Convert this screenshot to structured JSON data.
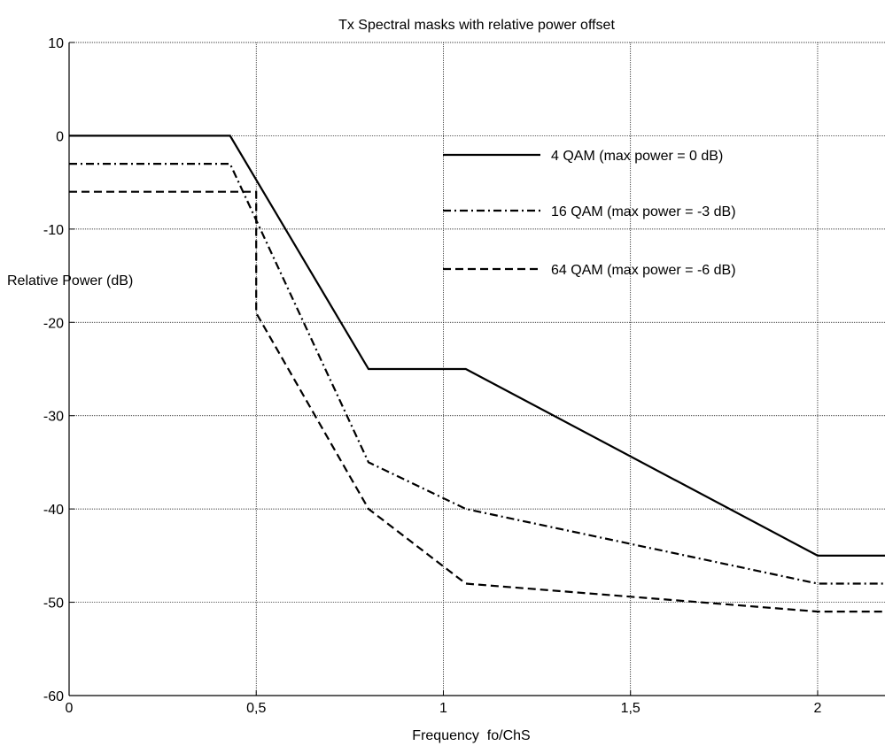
{
  "chart_data": {
    "type": "line",
    "title": "Tx Spectral masks with relative power offset",
    "xlabel": "Frequency  fo/ChS",
    "ylabel": "Relative Power (dB)",
    "xlim": [
      0,
      2.18
    ],
    "ylim": [
      -60,
      10
    ],
    "grid": true,
    "legend_position": "top-right",
    "x_ticks": [
      {
        "value": 0,
        "label": "0"
      },
      {
        "value": 0.5,
        "label": "0,5"
      },
      {
        "value": 1,
        "label": "1"
      },
      {
        "value": 1.5,
        "label": "1,5"
      },
      {
        "value": 2,
        "label": "2"
      }
    ],
    "y_ticks": [
      {
        "value": 10,
        "label": "10"
      },
      {
        "value": 0,
        "label": "0"
      },
      {
        "value": -10,
        "label": "-10"
      },
      {
        "value": -20,
        "label": "-20"
      },
      {
        "value": -30,
        "label": "-30"
      },
      {
        "value": -40,
        "label": "-40"
      },
      {
        "value": -50,
        "label": "-50"
      },
      {
        "value": -60,
        "label": "-60"
      }
    ],
    "series": [
      {
        "name": "4 QAM  (max power = 0 dB)",
        "style": "solid",
        "color": "#000000",
        "x": [
          0,
          0.43,
          0.8,
          1.06,
          2.0,
          2.18
        ],
        "y": [
          0,
          0,
          -25,
          -25,
          -45,
          -45
        ]
      },
      {
        "name": "16 QAM (max power = -3 dB)",
        "style": "dashdot",
        "color": "#000000",
        "x": [
          0,
          0.43,
          0.8,
          1.06,
          2.0,
          2.18
        ],
        "y": [
          -3,
          -3,
          -35,
          -40,
          -48,
          -48
        ]
      },
      {
        "name": "64 QAM (max power = -6 dB)",
        "style": "dashed",
        "color": "#000000",
        "x": [
          0,
          0.5,
          0.5,
          0.8,
          1.06,
          2.0,
          2.18
        ],
        "y": [
          -6,
          -6,
          -19,
          -40,
          -48,
          -51,
          -51
        ]
      }
    ]
  }
}
